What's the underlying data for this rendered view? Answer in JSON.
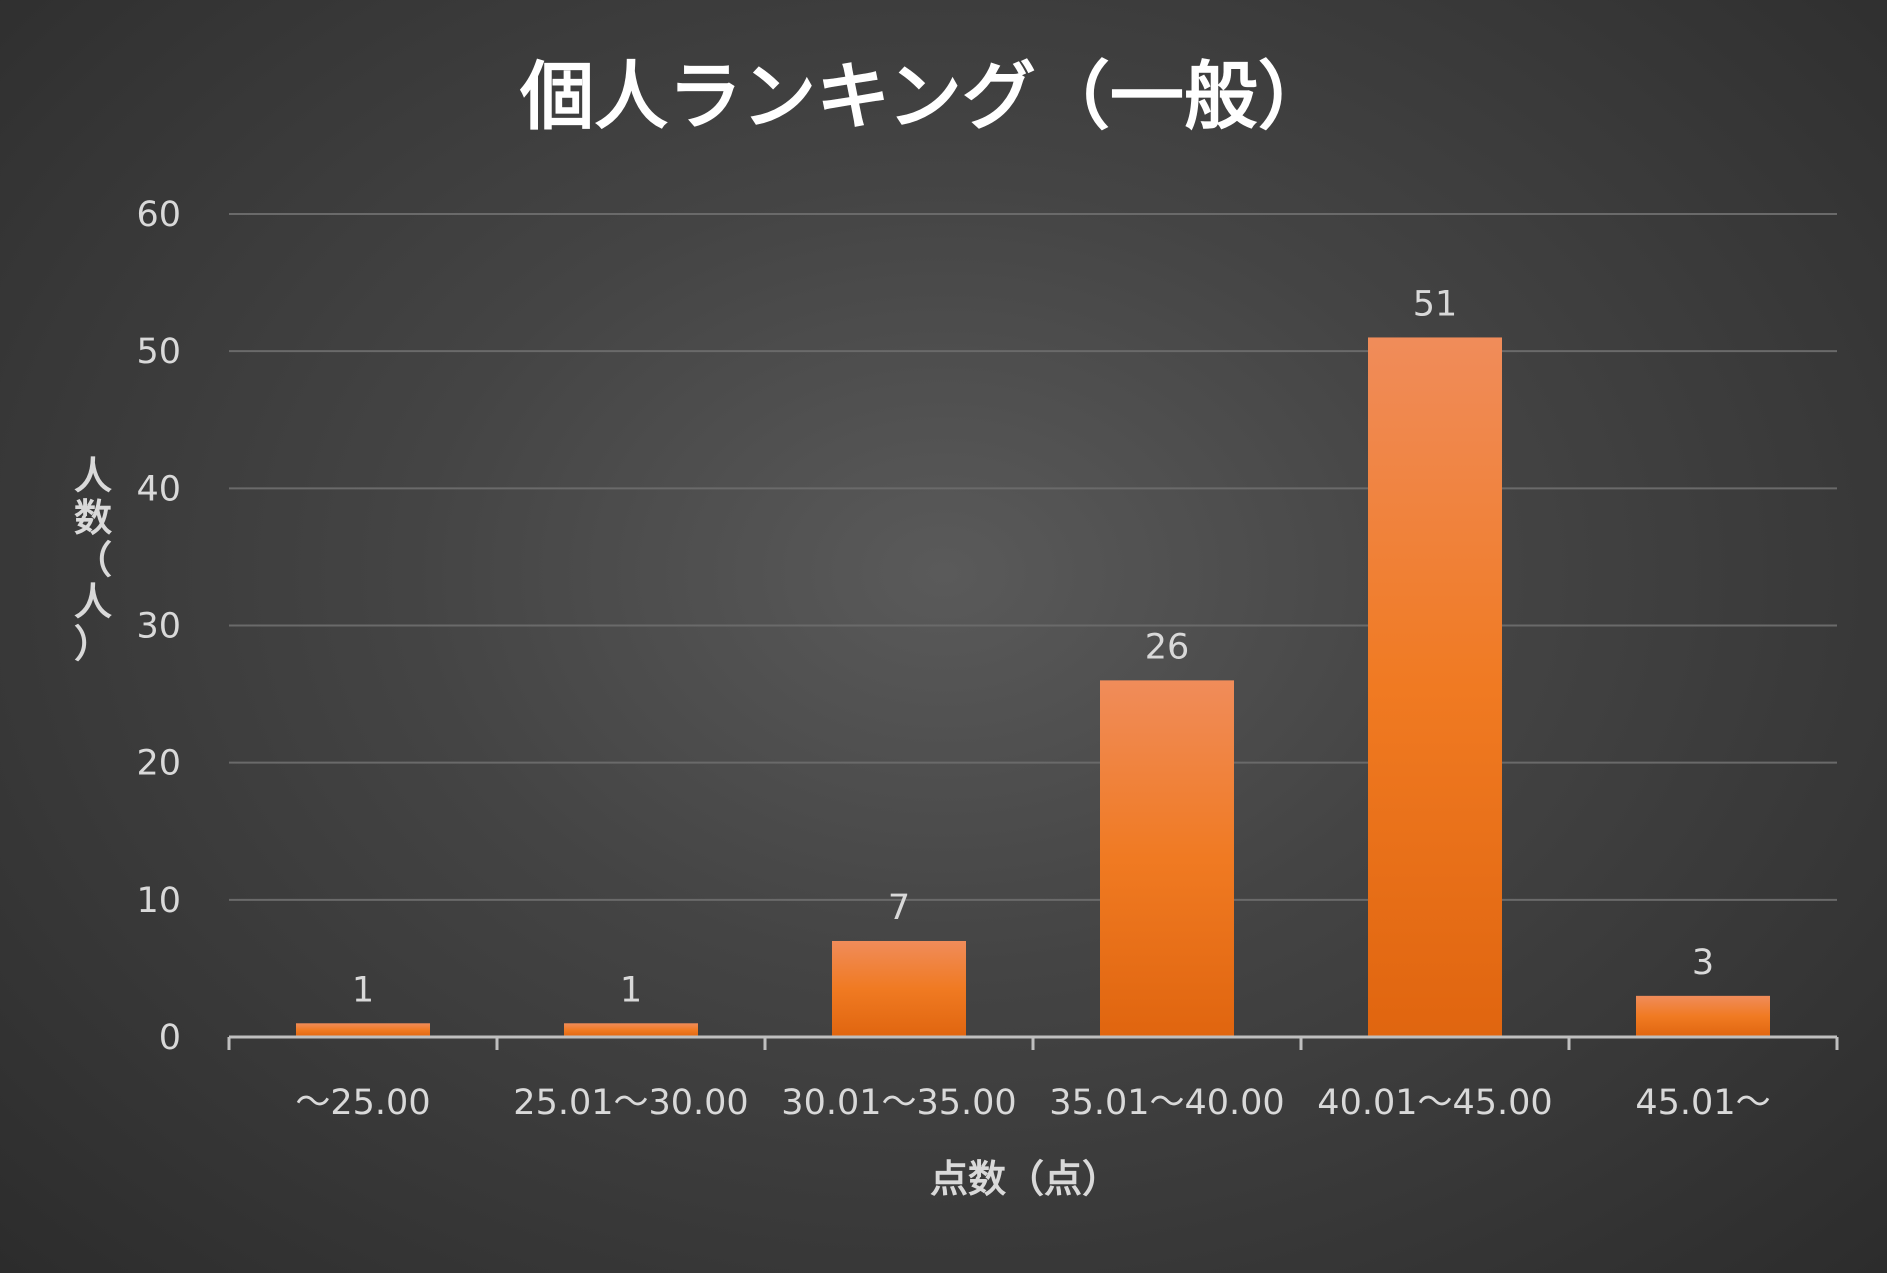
{
  "chart_data": {
    "type": "bar",
    "title": "個人ランキング（一般）",
    "xlabel": "点数（点）",
    "ylabel": "人数（人）",
    "categories": [
      "～25.00",
      "25.01～30.00",
      "30.01～35.00",
      "35.01～40.00",
      "40.01～45.00",
      "45.01～"
    ],
    "values": [
      1,
      1,
      7,
      26,
      51,
      3
    ],
    "ylim": [
      0,
      60
    ],
    "yticks": [
      0,
      10,
      20,
      30,
      40,
      50,
      60
    ],
    "grid": true,
    "data_labels": true,
    "bar_color_top": "#f08c5a",
    "bar_color": "#f07a22",
    "bar_color_bottom": "#e0650f"
  }
}
